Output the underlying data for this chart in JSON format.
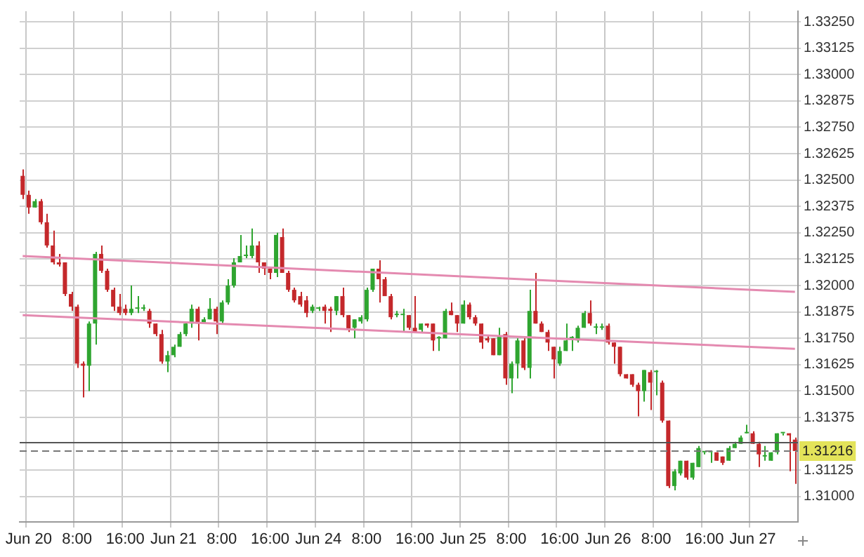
{
  "chart_data": {
    "type": "candlestick",
    "categories": [
      null,
      "Jun 20",
      null,
      null,
      null,
      null,
      null,
      null,
      null,
      "8:00",
      null,
      null,
      null,
      null,
      null,
      null,
      null,
      "16:00",
      null,
      null,
      null,
      null,
      null,
      null,
      null,
      "Jun 21",
      null,
      null,
      null,
      null,
      null,
      null,
      null,
      "8:00",
      null,
      null,
      null,
      null,
      null,
      null,
      null,
      "16:00",
      null,
      null,
      null,
      null,
      null,
      null,
      null,
      "Jun 24",
      null,
      null,
      null,
      null,
      null,
      null,
      null,
      "8:00",
      null,
      null,
      null,
      null,
      null,
      null,
      null,
      "16:00",
      null,
      null,
      null,
      null,
      null,
      null,
      null,
      "Jun 25",
      null,
      null,
      null,
      null,
      null,
      null,
      null,
      "8:00",
      null,
      null,
      null,
      null,
      null,
      null,
      null,
      "16:00",
      null,
      null,
      null,
      null,
      null,
      null,
      null,
      "Jun 26",
      null,
      null,
      null,
      null,
      null,
      null,
      null,
      "8:00",
      null,
      null,
      null,
      null,
      null,
      null,
      null,
      "16:00",
      null,
      null,
      null,
      null,
      null,
      null,
      null,
      "Jun 27",
      null,
      null,
      null,
      null,
      null,
      null,
      null
    ],
    "ohlc": [
      [
        1.3252,
        1.3255,
        1.3241,
        1.3243
      ],
      [
        1.3243,
        1.3245,
        1.3234,
        1.3237
      ],
      [
        1.3237,
        1.3241,
        1.3237,
        1.324
      ],
      [
        1.324,
        1.3241,
        1.3229,
        1.323
      ],
      [
        1.323,
        1.3234,
        1.3218,
        1.3219
      ],
      [
        1.3219,
        1.3226,
        1.321,
        1.3211
      ],
      [
        1.3211,
        1.3215,
        1.3209,
        1.321
      ],
      [
        1.3211,
        1.3211,
        1.3195,
        1.3196
      ],
      [
        1.3196,
        1.3197,
        1.3188,
        1.319
      ],
      [
        1.319,
        1.3191,
        1.3161,
        1.3163
      ],
      [
        1.3163,
        1.3164,
        1.3147,
        1.3162
      ],
      [
        1.3162,
        1.3183,
        1.315,
        1.3182
      ],
      [
        1.3182,
        1.3216,
        1.3172,
        1.3215
      ],
      [
        1.3215,
        1.3219,
        1.3206,
        1.3207
      ],
      [
        1.3207,
        1.3208,
        1.3197,
        1.3198
      ],
      [
        1.3198,
        1.3199,
        1.3188,
        1.319
      ],
      [
        1.319,
        1.3196,
        1.3186,
        1.3187
      ],
      [
        1.3189,
        1.3191,
        1.3186,
        1.3187
      ],
      [
        1.3187,
        1.32,
        1.3186,
        1.3189
      ],
      [
        1.3189,
        1.3195,
        1.3187,
        1.3189
      ],
      [
        1.3189,
        1.3191,
        1.3188,
        1.3189
      ],
      [
        1.3188,
        1.3189,
        1.318,
        1.3182
      ],
      [
        1.3182,
        1.3182,
        1.3176,
        1.3177
      ],
      [
        1.3177,
        1.3179,
        1.3163,
        1.3164
      ],
      [
        1.3164,
        1.3169,
        1.3159,
        1.3167
      ],
      [
        1.3167,
        1.3172,
        1.3166,
        1.3171
      ],
      [
        1.3171,
        1.3178,
        1.3171,
        1.3177
      ],
      [
        1.3177,
        1.3183,
        1.3176,
        1.3182
      ],
      [
        1.3182,
        1.3191,
        1.318,
        1.3189
      ],
      [
        1.3189,
        1.319,
        1.3174,
        1.3182
      ],
      [
        1.3182,
        1.3185,
        1.3182,
        1.3184
      ],
      [
        1.3184,
        1.3194,
        1.3184,
        1.3189
      ],
      [
        1.3189,
        1.319,
        1.3177,
        1.3183
      ],
      [
        1.3183,
        1.3193,
        1.3182,
        1.3192
      ],
      [
        1.3192,
        1.3203,
        1.3191,
        1.32
      ],
      [
        1.32,
        1.3213,
        1.3199,
        1.3211
      ],
      [
        1.3211,
        1.3224,
        1.3211,
        1.3214
      ],
      [
        1.3214,
        1.3219,
        1.3213,
        1.3214
      ],
      [
        1.3214,
        1.3227,
        1.3213,
        1.3219
      ],
      [
        1.3219,
        1.3221,
        1.3206,
        1.3211
      ],
      [
        1.3211,
        1.3211,
        1.3205,
        1.3208
      ],
      [
        1.3208,
        1.3208,
        1.3203,
        1.3206
      ],
      [
        1.3206,
        1.3225,
        1.3204,
        1.3224
      ],
      [
        1.3223,
        1.3227,
        1.3206,
        1.3206
      ],
      [
        1.3206,
        1.3207,
        1.3197,
        1.3198
      ],
      [
        1.3198,
        1.3199,
        1.3192,
        1.3193
      ],
      [
        1.3195,
        1.3197,
        1.319,
        1.3191
      ],
      [
        1.3193,
        1.3195,
        1.3185,
        1.3187
      ],
      [
        1.3188,
        1.3191,
        1.3187,
        1.319
      ],
      [
        1.3189,
        1.319,
        1.3188,
        1.3189
      ],
      [
        1.319,
        1.3191,
        1.3182,
        1.3188
      ],
      [
        1.3189,
        1.319,
        1.3178,
        1.3188
      ],
      [
        1.3188,
        1.3195,
        1.3186,
        1.3195
      ],
      [
        1.3195,
        1.3199,
        1.3185,
        1.3186
      ],
      [
        1.3186,
        1.3186,
        1.3178,
        1.3179
      ],
      [
        1.318,
        1.3184,
        1.3175,
        1.3184
      ],
      [
        1.3183,
        1.3186,
        1.3182,
        1.3185
      ],
      [
        1.3184,
        1.3199,
        1.3183,
        1.3198
      ],
      [
        1.3198,
        1.3208,
        1.3197,
        1.3208
      ],
      [
        1.3208,
        1.3212,
        1.3192,
        1.3203
      ],
      [
        1.3203,
        1.3204,
        1.3195,
        1.3195
      ],
      [
        1.3195,
        1.3196,
        1.3184,
        1.3185
      ],
      [
        1.3186,
        1.3188,
        1.3185,
        1.3186
      ],
      [
        1.3186,
        1.3189,
        1.3178,
        1.3186
      ],
      [
        1.3186,
        1.3186,
        1.3179,
        1.318
      ],
      [
        1.318,
        1.3195,
        1.3178,
        1.3178
      ],
      [
        1.3179,
        1.3182,
        1.3178,
        1.3182
      ],
      [
        1.3182,
        1.3182,
        1.318,
        1.3181
      ],
      [
        1.3182,
        1.3182,
        1.3169,
        1.3174
      ],
      [
        1.3175,
        1.3176,
        1.3169,
        1.3175
      ],
      [
        1.3175,
        1.3189,
        1.3175,
        1.3188
      ],
      [
        1.3188,
        1.3192,
        1.3186,
        1.3186
      ],
      [
        1.3186,
        1.3186,
        1.3178,
        1.3182
      ],
      [
        1.3182,
        1.3193,
        1.3182,
        1.3191
      ],
      [
        1.3191,
        1.3192,
        1.3184,
        1.3185
      ],
      [
        1.3185,
        1.3186,
        1.3181,
        1.3182
      ],
      [
        1.3182,
        1.3182,
        1.317,
        1.3173
      ],
      [
        1.3175,
        1.3176,
        1.3173,
        1.3174
      ],
      [
        1.3175,
        1.3175,
        1.3167,
        1.3167
      ],
      [
        1.3167,
        1.318,
        1.3167,
        1.3176
      ],
      [
        1.3177,
        1.3178,
        1.3153,
        1.3156
      ],
      [
        1.3156,
        1.3164,
        1.3149,
        1.3163
      ],
      [
        1.3163,
        1.3175,
        1.3156,
        1.3174
      ],
      [
        1.3174,
        1.3175,
        1.316,
        1.3161
      ],
      [
        1.3161,
        1.3198,
        1.3156,
        1.3188
      ],
      [
        1.3188,
        1.3206,
        1.3182,
        1.3182
      ],
      [
        1.3182,
        1.3183,
        1.3178,
        1.3178
      ],
      [
        1.3178,
        1.3179,
        1.3169,
        1.3173
      ],
      [
        1.3171,
        1.3171,
        1.3156,
        1.3165
      ],
      [
        1.3163,
        1.3171,
        1.3162,
        1.3169
      ],
      [
        1.3169,
        1.3182,
        1.3169,
        1.3174
      ],
      [
        1.3175,
        1.3176,
        1.3169,
        1.3175
      ],
      [
        1.3174,
        1.3181,
        1.3173,
        1.318
      ],
      [
        1.318,
        1.3188,
        1.318,
        1.3187
      ],
      [
        1.3187,
        1.3193,
        1.3181,
        1.3182
      ],
      [
        1.318,
        1.3182,
        1.3177,
        1.318
      ],
      [
        1.318,
        1.3182,
        1.3179,
        1.318
      ],
      [
        1.3181,
        1.3182,
        1.3172,
        1.3173
      ],
      [
        1.3173,
        1.3173,
        1.3163,
        1.3171
      ],
      [
        1.3171,
        1.3171,
        1.3157,
        1.3158
      ],
      [
        1.3158,
        1.3158,
        1.3156,
        1.3156
      ],
      [
        1.3158,
        1.3158,
        1.3152,
        1.3153
      ],
      [
        1.3153,
        1.3154,
        1.3138,
        1.315
      ],
      [
        1.315,
        1.316,
        1.3145,
        1.316
      ],
      [
        1.3159,
        1.316,
        1.3141,
        1.3154
      ],
      [
        1.3159,
        1.316,
        1.3148,
        1.3159
      ],
      [
        1.3154,
        1.3155,
        1.3135,
        1.3136
      ],
      [
        1.3136,
        1.3136,
        1.3104,
        1.3105
      ],
      [
        1.3105,
        1.3113,
        1.3103,
        1.3112
      ],
      [
        1.3111,
        1.3117,
        1.311,
        1.3117
      ],
      [
        1.3117,
        1.3117,
        1.3108,
        1.3109
      ],
      [
        1.3109,
        1.3116,
        1.3108,
        1.3116
      ],
      [
        1.3114,
        1.3124,
        1.3114,
        1.3123
      ],
      [
        1.3121,
        1.3121,
        1.312,
        1.3121
      ],
      [
        1.3121,
        1.3121,
        1.3116,
        1.3121
      ],
      [
        1.3121,
        1.3121,
        1.3117,
        1.3117
      ],
      [
        1.3119,
        1.3119,
        1.3115,
        1.3116
      ],
      [
        1.3117,
        1.3124,
        1.3117,
        1.3123
      ],
      [
        1.3123,
        1.3126,
        1.3123,
        1.3125
      ],
      [
        1.3125,
        1.3129,
        1.3125,
        1.3128
      ],
      [
        1.313,
        1.3134,
        1.313,
        1.313
      ],
      [
        1.313,
        1.3131,
        1.3125,
        1.3125
      ],
      [
        1.3125,
        1.3126,
        1.3114,
        1.312
      ],
      [
        1.3119,
        1.3124,
        1.3117,
        1.3119
      ],
      [
        1.3117,
        1.3121,
        1.3117,
        1.3121
      ],
      [
        1.3121,
        1.313,
        1.312,
        1.313
      ],
      [
        1.313,
        1.313,
        1.3129,
        1.313
      ],
      [
        1.313,
        1.313,
        1.3112,
        1.3129
      ],
      [
        1.3127,
        1.3128,
        1.3106,
        1.31216
      ]
    ],
    "colors": [
      "#c4282b",
      "#c4282b",
      "#2fa530",
      "#c4282b",
      "#c4282b",
      "#c4282b",
      "#c4282b",
      "#c4282b",
      "#c4282b",
      "#c4282b",
      "#c4282b",
      "#2fa530",
      "#2fa530",
      "#c4282b",
      "#c4282b",
      "#c4282b",
      "#c4282b",
      "#c4282b",
      "#2fa530",
      "#2fa530",
      "#2fa530",
      "#c4282b",
      "#c4282b",
      "#c4282b",
      "#2fa530",
      "#2fa530",
      "#2fa530",
      "#2fa530",
      "#2fa530",
      "#c4282b",
      "#2fa530",
      "#2fa530",
      "#c4282b",
      "#2fa530",
      "#2fa530",
      "#2fa530",
      "#2fa530",
      "#2fa530",
      "#2fa530",
      "#c4282b",
      "#c4282b",
      "#c4282b",
      "#2fa530",
      "#c4282b",
      "#c4282b",
      "#c4282b",
      "#c4282b",
      "#c4282b",
      "#2fa530",
      "#2fa530",
      "#c4282b",
      "#c4282b",
      "#2fa530",
      "#c4282b",
      "#c4282b",
      "#2fa530",
      "#2fa530",
      "#2fa530",
      "#2fa530",
      "#c4282b",
      "#c4282b",
      "#c4282b",
      "#2fa530",
      "#2fa530",
      "#c4282b",
      "#c4282b",
      "#2fa530",
      "#c4282b",
      "#c4282b",
      "#2fa530",
      "#2fa530",
      "#c4282b",
      "#c4282b",
      "#2fa530",
      "#c4282b",
      "#c4282b",
      "#c4282b",
      "#c4282b",
      "#c4282b",
      "#2fa530",
      "#c4282b",
      "#2fa530",
      "#2fa530",
      "#c4282b",
      "#2fa530",
      "#c4282b",
      "#c4282b",
      "#c4282b",
      "#c4282b",
      "#2fa530",
      "#2fa530",
      "#2fa530",
      "#2fa530",
      "#2fa530",
      "#c4282b",
      "#2fa530",
      "#2fa530",
      "#c4282b",
      "#c4282b",
      "#c4282b",
      "#c4282b",
      "#c4282b",
      "#c4282b",
      "#2fa530",
      "#c4282b",
      "#2fa530",
      "#c4282b",
      "#c4282b",
      "#2fa530",
      "#2fa530",
      "#c4282b",
      "#2fa530",
      "#2fa530",
      "#2fa530",
      "#2fa530",
      "#c4282b",
      "#c4282b",
      "#2fa530",
      "#2fa530",
      "#2fa530",
      "#2fa530",
      "#c4282b",
      "#c4282b",
      "#2fa530",
      "#2fa530",
      "#2fa530",
      "#2fa530",
      "#c4282b",
      "#c4282b"
    ],
    "series": [
      {
        "type": "line",
        "color": "#e48ab0",
        "values": [
          1.3214,
          null,
          null,
          null,
          null,
          null,
          null,
          null,
          null,
          null,
          null,
          null,
          null,
          null,
          null,
          null,
          null,
          null,
          null,
          null,
          null,
          null,
          null,
          null,
          null,
          null,
          null,
          null,
          null,
          null,
          null,
          null,
          null,
          null,
          null,
          null,
          null,
          null,
          null,
          null,
          null,
          null,
          null,
          null,
          null,
          null,
          null,
          null,
          null,
          null,
          null,
          null,
          null,
          null,
          null,
          null,
          null,
          null,
          null,
          null,
          null,
          null,
          null,
          null,
          null,
          null,
          null,
          null,
          null,
          null,
          null,
          null,
          null,
          null,
          null,
          null,
          null,
          null,
          null,
          null,
          null,
          null,
          null,
          null,
          null,
          null,
          null,
          null,
          null,
          null,
          null,
          null,
          null,
          null,
          null,
          null,
          null,
          null,
          null,
          null,
          null,
          null,
          null,
          null,
          null,
          null,
          null,
          null,
          null,
          null,
          null,
          null,
          null,
          null,
          null,
          null,
          null,
          null,
          null,
          null,
          null,
          null,
          null,
          null,
          null,
          null,
          null,
          null,
          1.3197
        ]
      },
      {
        "type": "line",
        "color": "#e48ab0",
        "values": [
          1.3186,
          null,
          null,
          null,
          null,
          null,
          null,
          null,
          null,
          null,
          null,
          null,
          null,
          null,
          null,
          null,
          null,
          null,
          null,
          null,
          null,
          null,
          null,
          null,
          null,
          null,
          null,
          null,
          null,
          null,
          null,
          null,
          null,
          null,
          null,
          null,
          null,
          null,
          null,
          null,
          null,
          null,
          null,
          null,
          null,
          null,
          null,
          null,
          null,
          null,
          null,
          null,
          null,
          null,
          null,
          null,
          null,
          null,
          null,
          null,
          null,
          null,
          null,
          null,
          null,
          null,
          null,
          null,
          null,
          null,
          null,
          null,
          null,
          null,
          null,
          null,
          null,
          null,
          null,
          null,
          null,
          null,
          null,
          null,
          null,
          null,
          null,
          null,
          null,
          null,
          null,
          null,
          null,
          null,
          null,
          null,
          null,
          null,
          null,
          null,
          null,
          null,
          null,
          null,
          null,
          null,
          null,
          null,
          null,
          null,
          null,
          null,
          null,
          null,
          null,
          null,
          null,
          null,
          null,
          null,
          null,
          null,
          null,
          null,
          null,
          null,
          null,
          null,
          1.317
        ]
      }
    ],
    "ylim": [
      1.3088,
      1.333
    ],
    "yticks": [
      {
        "value": 1.31,
        "label": "1.31000"
      },
      {
        "value": 1.31125,
        "label": "1.31125"
      },
      {
        "value": 1.31375,
        "label": "1.31375"
      },
      {
        "value": 1.315,
        "label": "1.31500"
      },
      {
        "value": 1.31625,
        "label": "1.31625"
      },
      {
        "value": 1.3175,
        "label": "1.31750"
      },
      {
        "value": 1.31875,
        "label": "1.31875"
      },
      {
        "value": 1.32,
        "label": "1.32000"
      },
      {
        "value": 1.32125,
        "label": "1.32125"
      },
      {
        "value": 1.3225,
        "label": "1.32250"
      },
      {
        "value": 1.32375,
        "label": "1.32375"
      },
      {
        "value": 1.325,
        "label": "1.32500"
      },
      {
        "value": 1.32625,
        "label": "1.32625"
      },
      {
        "value": 1.3275,
        "label": "1.32750"
      },
      {
        "value": 1.32875,
        "label": "1.32875"
      },
      {
        "value": 1.33,
        "label": "1.33000"
      },
      {
        "value": 1.33125,
        "label": "1.33125"
      },
      {
        "value": 1.3325,
        "label": "1.33250"
      }
    ],
    "ref_lines": [
      {
        "axis": "y",
        "value": 1.3126,
        "color": "#555555",
        "line_style": "solid"
      },
      {
        "axis": "y",
        "value": 1.31216,
        "label": "1.31216",
        "color": "#777777",
        "line_style": "dashed"
      }
    ],
    "grid": true
  }
}
